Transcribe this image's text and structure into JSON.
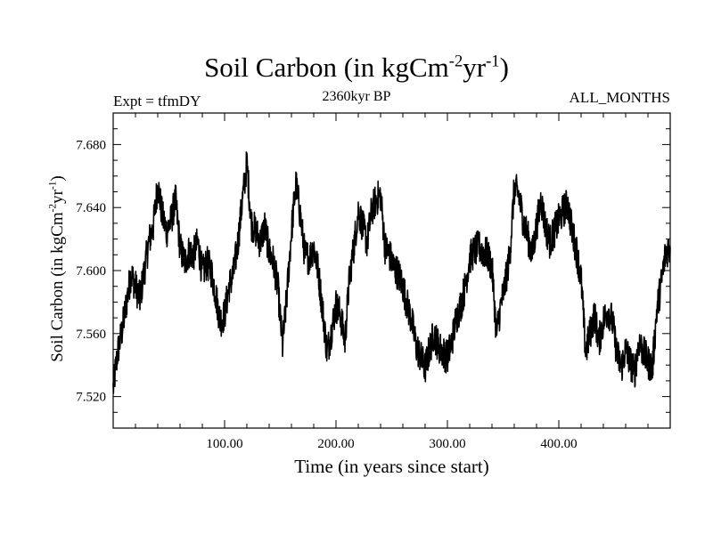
{
  "figure": {
    "title_main": "Soil Carbon (in kgCm",
    "title_sup1": "-2",
    "title_mid": "yr",
    "title_sup2": "-1",
    "title_end": ")",
    "subtitle": "2360kyr BP",
    "expt_label": "Expt = tfmDY",
    "months_label": "ALL_MONTHS",
    "xlabel": "Time (in years since start)",
    "ylabel_main": "Soil Carbon (in kgCm",
    "ylabel_sup1": "-2",
    "ylabel_mid": "yr",
    "ylabel_sup2": "-1",
    "ylabel_end": ")"
  },
  "chart_data": {
    "type": "line",
    "title": "Soil Carbon (in kgCm-2yr-1)",
    "xlabel": "Time (in years since start)",
    "ylabel": "Soil Carbon (in kgCm-2yr-1)",
    "xlim": [
      0,
      500
    ],
    "ylim": [
      7.5,
      7.7
    ],
    "xticks": [
      100,
      200,
      300,
      400
    ],
    "xtick_labels": [
      "100.00",
      "200.00",
      "300.00",
      "400.00"
    ],
    "yticks": [
      7.52,
      7.56,
      7.6,
      7.64,
      7.68
    ],
    "ytick_labels": [
      "7.520",
      "7.560",
      "7.600",
      "7.640",
      "7.680"
    ],
    "grid": false,
    "line_color": "#000000",
    "series": [
      {
        "name": "Soil Carbon",
        "x": [
          0,
          4,
          8,
          12,
          16,
          20,
          24,
          28,
          32,
          36,
          40,
          44,
          48,
          52,
          56,
          60,
          64,
          68,
          72,
          76,
          80,
          84,
          88,
          92,
          96,
          100,
          104,
          108,
          112,
          116,
          120,
          124,
          128,
          132,
          136,
          140,
          144,
          148,
          152,
          156,
          160,
          164,
          168,
          172,
          176,
          180,
          184,
          188,
          192,
          196,
          200,
          204,
          208,
          212,
          216,
          220,
          224,
          228,
          232,
          236,
          240,
          244,
          248,
          252,
          256,
          260,
          264,
          268,
          272,
          276,
          280,
          284,
          288,
          292,
          296,
          300,
          304,
          308,
          312,
          316,
          320,
          324,
          328,
          332,
          336,
          340,
          344,
          348,
          352,
          356,
          360,
          364,
          368,
          372,
          376,
          380,
          384,
          388,
          392,
          396,
          400,
          404,
          408,
          412,
          416,
          420,
          424,
          428,
          432,
          436,
          440,
          444,
          448,
          452,
          456,
          460,
          464,
          468,
          472,
          476,
          480,
          484,
          488,
          492,
          496,
          500
        ],
        "values": [
          7.525,
          7.548,
          7.562,
          7.58,
          7.598,
          7.59,
          7.582,
          7.6,
          7.618,
          7.628,
          7.655,
          7.635,
          7.625,
          7.632,
          7.645,
          7.615,
          7.605,
          7.612,
          7.61,
          7.618,
          7.598,
          7.605,
          7.6,
          7.585,
          7.568,
          7.572,
          7.59,
          7.598,
          7.618,
          7.645,
          7.668,
          7.63,
          7.625,
          7.618,
          7.628,
          7.612,
          7.605,
          7.588,
          7.552,
          7.585,
          7.625,
          7.655,
          7.635,
          7.61,
          7.608,
          7.615,
          7.6,
          7.575,
          7.548,
          7.562,
          7.578,
          7.572,
          7.555,
          7.595,
          7.615,
          7.638,
          7.628,
          7.618,
          7.638,
          7.645,
          7.648,
          7.615,
          7.61,
          7.602,
          7.598,
          7.59,
          7.578,
          7.568,
          7.552,
          7.545,
          7.538,
          7.55,
          7.56,
          7.552,
          7.548,
          7.545,
          7.555,
          7.57,
          7.578,
          7.59,
          7.608,
          7.612,
          7.615,
          7.612,
          7.61,
          7.602,
          7.56,
          7.578,
          7.592,
          7.61,
          7.652,
          7.648,
          7.632,
          7.622,
          7.61,
          7.628,
          7.645,
          7.628,
          7.618,
          7.625,
          7.632,
          7.638,
          7.642,
          7.625,
          7.612,
          7.595,
          7.548,
          7.56,
          7.572,
          7.555,
          7.568,
          7.575,
          7.568,
          7.548,
          7.538,
          7.55,
          7.542,
          7.535,
          7.555,
          7.548,
          7.542,
          7.538,
          7.575,
          7.592,
          7.612,
          7.615
        ]
      }
    ]
  }
}
